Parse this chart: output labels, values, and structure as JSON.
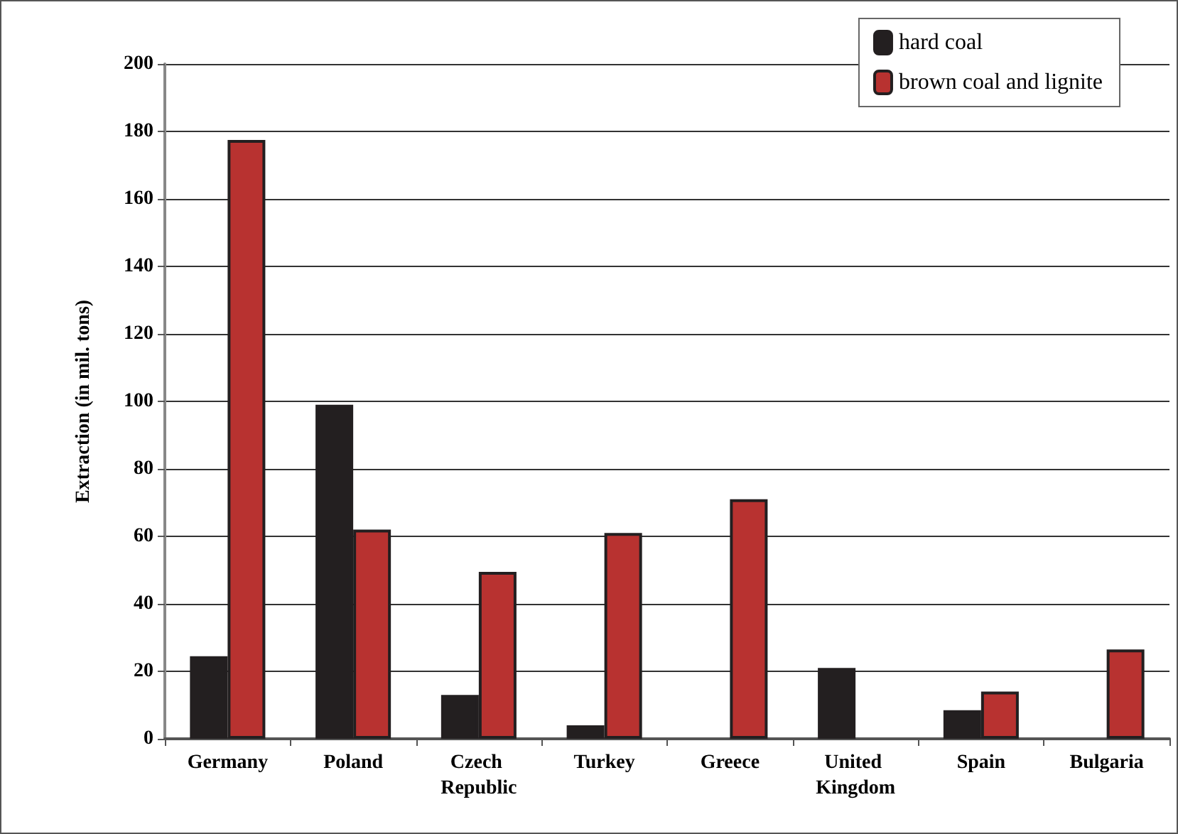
{
  "chart_data": {
    "type": "bar",
    "ylabel": "Extraction (in mil. tons)",
    "categories": [
      "Germany",
      "Poland",
      "Czech Republic",
      "Turkey",
      "Greece",
      "United Kingdom",
      "Spain",
      "Bulgaria"
    ],
    "series": [
      {
        "name": "hard coal",
        "color": "#231f20",
        "values": [
          24.5,
          99,
          13,
          4,
          null,
          21,
          8.5,
          null
        ]
      },
      {
        "name": "brown coal and lignite",
        "color": "#b83230",
        "values": [
          177.5,
          62,
          49.5,
          61,
          71,
          null,
          14,
          26.5
        ]
      }
    ],
    "ylim": [
      0,
      200
    ],
    "yticks": [
      0,
      20,
      40,
      60,
      80,
      100,
      120,
      140,
      160,
      180,
      200
    ],
    "grid": "y",
    "legend": "top right"
  }
}
